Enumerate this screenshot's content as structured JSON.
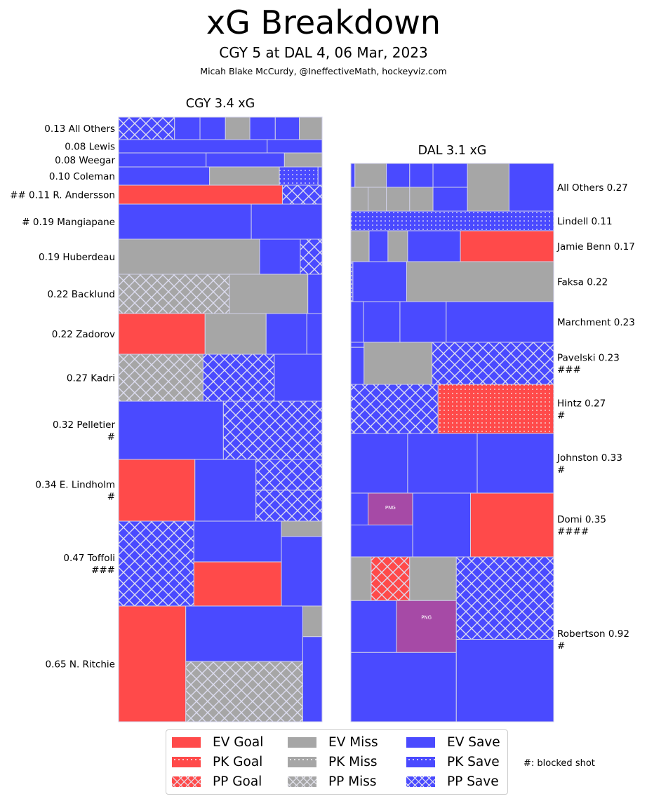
{
  "header": {
    "title": "xG Breakdown",
    "subtitle": "CGY 5 at DAL 4, 06 Mar, 2023",
    "credit": "Micah Blake McCurdy, @IneffectiveMath, hockeyviz.com"
  },
  "colors": {
    "goal": "#ff4a4a",
    "miss": "#a6a6a6",
    "save": "#4a4aff",
    "penalty": "#a64aa6",
    "edge": "#d0d0e8"
  },
  "chart_data": {
    "type": "treemap",
    "title": "xG Breakdown",
    "panels": [
      {
        "team": "CGY",
        "title": "CGY 3.4 xG",
        "total_xg": 3.4,
        "label_side": "left",
        "players": [
          {
            "name": "All Others",
            "label": "0.13 All Others",
            "xg": 0.13,
            "blocked": 0,
            "shots": [
              {
                "type": "save",
                "strength": "pp",
                "w": 0.275
              },
              {
                "type": "save",
                "strength": "ev",
                "w": 0.125
              },
              {
                "type": "save",
                "strength": "ev",
                "w": 0.125
              },
              {
                "type": "miss",
                "strength": "ev",
                "w": 0.12
              },
              {
                "type": "save",
                "strength": "ev",
                "w": 0.125
              },
              {
                "type": "save",
                "strength": "ev",
                "w": 0.118
              },
              {
                "type": "miss",
                "strength": "ev",
                "w": 0.112
              }
            ]
          },
          {
            "name": "Lewis",
            "label": "0.08 Lewis",
            "xg": 0.08,
            "blocked": 0,
            "shots": [
              {
                "type": "save",
                "strength": "ev",
                "w": 0.73
              },
              {
                "type": "save",
                "strength": "ev",
                "w": 0.27
              }
            ]
          },
          {
            "name": "Weegar",
            "label": "0.08 Weegar",
            "xg": 0.08,
            "blocked": 0,
            "shots": [
              {
                "type": "save",
                "strength": "ev",
                "w": 0.43
              },
              {
                "type": "save",
                "strength": "ev",
                "w": 0.385
              },
              {
                "type": "miss",
                "strength": "ev",
                "w": 0.185
              }
            ]
          },
          {
            "name": "Coleman",
            "label": "0.10 Coleman",
            "xg": 0.1,
            "blocked": 0,
            "shots": [
              {
                "type": "save",
                "strength": "ev",
                "w": 0.447
              },
              {
                "type": "miss",
                "strength": "ev",
                "w": 0.343
              },
              {
                "type": "save",
                "strength": "pk",
                "w": 0.19
              },
              {
                "type": "save",
                "strength": "ev",
                "w": 0.02
              }
            ]
          },
          {
            "name": "R. Andersson",
            "label": "## 0.11 R. Andersson",
            "xg": 0.11,
            "blocked": 2,
            "shots": [
              {
                "type": "goal",
                "strength": "ev",
                "w": 0.805
              },
              {
                "type": "save",
                "strength": "pp",
                "w": 0.195
              }
            ]
          },
          {
            "name": "Mangiapane",
            "label": "# 0.19 Mangiapane",
            "xg": 0.19,
            "blocked": 1,
            "shots": [
              {
                "type": "save",
                "strength": "ev",
                "w": 0.652
              },
              {
                "type": "save",
                "strength": "ev",
                "w": 0.348
              }
            ]
          },
          {
            "name": "Huberdeau",
            "label": "0.19 Huberdeau",
            "xg": 0.19,
            "blocked": 0,
            "shots": [
              {
                "type": "miss",
                "strength": "ev",
                "w": 0.693
              },
              {
                "type": "save",
                "strength": "ev",
                "w": 0.2
              },
              {
                "type": "save",
                "strength": "pp",
                "w": 0.107
              }
            ]
          },
          {
            "name": "Backlund",
            "label": "0.22 Backlund",
            "xg": 0.22,
            "blocked": 0,
            "shots": [
              {
                "type": "miss",
                "strength": "pp",
                "w": 0.545
              },
              {
                "type": "miss",
                "strength": "ev",
                "w": 0.385
              },
              {
                "type": "save",
                "strength": "ev",
                "w": 0.07
              }
            ]
          },
          {
            "name": "Zadorov",
            "label": "0.22 Zadorov",
            "xg": 0.22,
            "blocked": 0,
            "shots": [
              {
                "type": "goal",
                "strength": "ev",
                "w": 0.425
              },
              {
                "type": "miss",
                "strength": "ev",
                "w": 0.3
              },
              {
                "type": "save",
                "strength": "ev",
                "w": 0.2
              },
              {
                "type": "save",
                "strength": "ev",
                "w": 0.075
              }
            ]
          },
          {
            "name": "Kadri",
            "label": "0.27 Kadri",
            "xg": 0.27,
            "blocked": 0,
            "shots": [
              {
                "type": "miss",
                "strength": "pp",
                "w": 0.415
              },
              {
                "type": "save",
                "strength": "pp",
                "w": 0.35
              },
              {
                "type": "save",
                "strength": "ev",
                "w": 0.235
              }
            ]
          },
          {
            "name": "Pelletier",
            "label": "0.32 Pelletier\n#",
            "xg": 0.32,
            "blocked": 1,
            "shots": [
              {
                "type": "save",
                "strength": "ev",
                "w": 0.515
              },
              {
                "type": "save",
                "strength": "pp",
                "w": 0.485
              }
            ]
          },
          {
            "name": "E. Lindholm",
            "label": "0.34 E. Lindholm\n#",
            "xg": 0.34,
            "blocked": 1,
            "shots": [
              {
                "type": "goal",
                "strength": "ev",
                "w": 0.375
              },
              {
                "type": "save",
                "strength": "ev",
                "w": 0.3
              },
              {
                "type": "save",
                "strength": "pp",
                "w": 0.1625
              },
              {
                "type": "save",
                "strength": "pp",
                "w": 0.1625
              }
            ]
          },
          {
            "name": "Toffoli",
            "label": "0.47 Toffoli\n###",
            "xg": 0.47,
            "blocked": 3,
            "shots": [
              {
                "type": "save",
                "strength": "pp",
                "w": 0.37
              },
              {
                "type": "save",
                "strength": "ev",
                "w": 0.215
              },
              {
                "type": "goal",
                "strength": "ev",
                "w": 0.215
              },
              {
                "type": "miss",
                "strength": "ev",
                "w": 0.035
              },
              {
                "type": "save",
                "strength": "ev",
                "w": 0.165
              }
            ]
          },
          {
            "name": "N. Ritchie",
            "label": "0.65 N. Ritchie",
            "xg": 0.65,
            "blocked": 0,
            "shots": [
              {
                "type": "goal",
                "strength": "ev",
                "w": 0.33
              },
              {
                "type": "save",
                "strength": "ev",
                "w": 0.27
              },
              {
                "type": "miss",
                "strength": "pp",
                "w": 0.29
              },
              {
                "type": "miss",
                "strength": "ev",
                "w": 0.025
              },
              {
                "type": "save",
                "strength": "ev",
                "w": 0.085
              }
            ]
          }
        ]
      },
      {
        "team": "DAL",
        "title": "DAL 3.1 xG",
        "total_xg": 3.1,
        "label_side": "right",
        "players": [
          {
            "name": "All Others",
            "label": "All Others 0.27",
            "xg": 0.27,
            "blocked": 0,
            "shots": [
              {
                "type": "save",
                "strength": "ev",
                "w": 0.005
              },
              {
                "type": "miss",
                "strength": "ev",
                "w": 0.06
              },
              {
                "type": "miss",
                "strength": "ev",
                "w": 0.04
              },
              {
                "type": "miss",
                "strength": "ev",
                "w": 0.045
              },
              {
                "type": "save",
                "strength": "ev",
                "w": 0.045
              },
              {
                "type": "miss",
                "strength": "ev",
                "w": 0.045
              },
              {
                "type": "save",
                "strength": "ev",
                "w": 0.04
              },
              {
                "type": "miss",
                "strength": "ev",
                "w": 0.04
              },
              {
                "type": "save",
                "strength": "ev",
                "w": 0.065
              },
              {
                "type": "save",
                "strength": "ev",
                "w": 0.055
              },
              {
                "type": "miss",
                "strength": "ev",
                "w": 0.205
              },
              {
                "type": "save",
                "strength": "ev",
                "w": 0.215
              }
            ]
          },
          {
            "name": "Lindell",
            "label": "Lindell 0.11",
            "xg": 0.11,
            "blocked": 0,
            "shots": [
              {
                "type": "save",
                "strength": "pk",
                "w": 1.0
              }
            ]
          },
          {
            "name": "Jamie Benn",
            "label": "Jamie Benn 0.17",
            "xg": 0.17,
            "blocked": 0,
            "shots": [
              {
                "type": "miss",
                "strength": "ev",
                "w": 0.09
              },
              {
                "type": "save",
                "strength": "ev",
                "w": 0.093
              },
              {
                "type": "miss",
                "strength": "ev",
                "w": 0.097
              },
              {
                "type": "save",
                "strength": "ev",
                "w": 0.26
              },
              {
                "type": "goal",
                "strength": "ev",
                "w": 0.46
              }
            ]
          },
          {
            "name": "Faksa",
            "label": "Faksa 0.22",
            "xg": 0.22,
            "blocked": 0,
            "shots": [
              {
                "type": "save",
                "strength": "pk",
                "w": 0.01
              },
              {
                "type": "save",
                "strength": "ev",
                "w": 0.265
              },
              {
                "type": "miss",
                "strength": "ev",
                "w": 0.725
              }
            ]
          },
          {
            "name": "Marchment",
            "label": "Marchment 0.23",
            "xg": 0.23,
            "blocked": 0,
            "shots": [
              {
                "type": "save",
                "strength": "ev",
                "w": 0.062
              },
              {
                "type": "save",
                "strength": "ev",
                "w": 0.18
              },
              {
                "type": "save",
                "strength": "ev",
                "w": 0.228
              },
              {
                "type": "save",
                "strength": "ev",
                "w": 0.53
              }
            ]
          },
          {
            "name": "Pavelski",
            "label": "Pavelski 0.23\n###",
            "xg": 0.23,
            "blocked": 3,
            "shots": [
              {
                "type": "save",
                "strength": "ev",
                "w": 0.025
              },
              {
                "type": "save",
                "strength": "ev",
                "w": 0.04
              },
              {
                "type": "miss",
                "strength": "ev",
                "w": 0.335
              },
              {
                "type": "save",
                "strength": "pp",
                "w": 0.6
              }
            ]
          },
          {
            "name": "Hintz",
            "label": "Hintz 0.27\n#",
            "xg": 0.27,
            "blocked": 1,
            "shots": [
              {
                "type": "save",
                "strength": "pp",
                "w": 0.43
              },
              {
                "type": "goal",
                "strength": "pk",
                "w": 0.57
              }
            ]
          },
          {
            "name": "Johnston",
            "label": "Johnston 0.33\n#",
            "xg": 0.33,
            "blocked": 1,
            "shots": [
              {
                "type": "save",
                "strength": "ev",
                "w": 0.28
              },
              {
                "type": "save",
                "strength": "ev",
                "w": 0.343
              },
              {
                "type": "save",
                "strength": "ev",
                "w": 0.377
              }
            ]
          },
          {
            "name": "Domi",
            "label": "Domi 0.35\n####",
            "xg": 0.35,
            "blocked": 4,
            "shots": [
              {
                "type": "save",
                "strength": "ev",
                "w": 0.045
              },
              {
                "type": "penalty",
                "label": "PNG",
                "w": 0.055
              },
              {
                "type": "save",
                "strength": "ev",
                "w": 0.105
              },
              {
                "type": "save",
                "strength": "ev",
                "w": 0.265
              },
              {
                "type": "goal",
                "strength": "ev",
                "w": 0.53
              }
            ]
          },
          {
            "name": "Robertson",
            "label": "Robertson 0.92\n#",
            "xg": 0.92,
            "blocked": 1,
            "shots": [
              {
                "type": "miss",
                "strength": "ev",
                "w": 0.026
              },
              {
                "type": "goal",
                "strength": "pp",
                "w": 0.048
              },
              {
                "type": "miss",
                "strength": "ev",
                "w": 0.057
              },
              {
                "type": "save",
                "strength": "ev",
                "w": 0.05
              },
              {
                "type": "penalty",
                "label": "PNG",
                "w": 0.065
              },
              {
                "type": "save",
                "strength": "ev",
                "w": 0.206
              },
              {
                "type": "save",
                "strength": "pp",
                "w": 0.228
              },
              {
                "type": "save",
                "strength": "ev",
                "w": 0.32
              }
            ]
          }
        ]
      }
    ],
    "legend": {
      "placement": "bottom-center",
      "columns": [
        [
          {
            "label": "EV Goal",
            "type": "goal",
            "strength": "ev"
          },
          {
            "label": "PK Goal",
            "type": "goal",
            "strength": "pk"
          },
          {
            "label": "PP Goal",
            "type": "goal",
            "strength": "pp"
          }
        ],
        [
          {
            "label": "EV Miss",
            "type": "miss",
            "strength": "ev"
          },
          {
            "label": "PK Miss",
            "type": "miss",
            "strength": "pk"
          },
          {
            "label": "PP Miss",
            "type": "miss",
            "strength": "pp"
          }
        ],
        [
          {
            "label": "EV Save",
            "type": "save",
            "strength": "ev"
          },
          {
            "label": "PK Save",
            "type": "save",
            "strength": "pk"
          },
          {
            "label": "PP Save",
            "type": "save",
            "strength": "pp"
          }
        ]
      ],
      "note": "#: blocked shot"
    }
  }
}
